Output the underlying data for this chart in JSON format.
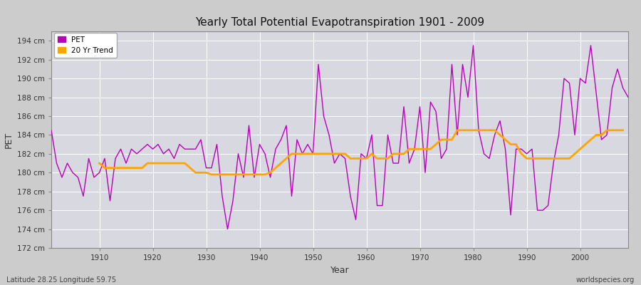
{
  "title": "Yearly Total Potential Evapotranspiration 1901 - 2009",
  "xlabel": "Year",
  "ylabel": "PET",
  "subtitle_left": "Latitude 28.25 Longitude 59.75",
  "subtitle_right": "worldspecies.org",
  "pet_color": "#BB00BB",
  "trend_color": "#FFA500",
  "fig_bg_color": "#CCCCCC",
  "plot_bg_color": "#D8D8E0",
  "ylim": [
    172,
    195
  ],
  "yticks": [
    172,
    174,
    176,
    178,
    180,
    182,
    184,
    186,
    188,
    190,
    192,
    194
  ],
  "xlim": [
    1901,
    2009
  ],
  "xticks": [
    1910,
    1920,
    1930,
    1940,
    1950,
    1960,
    1970,
    1980,
    1990,
    2000
  ],
  "years": [
    1901,
    1902,
    1903,
    1904,
    1905,
    1906,
    1907,
    1908,
    1909,
    1910,
    1911,
    1912,
    1913,
    1914,
    1915,
    1916,
    1917,
    1918,
    1919,
    1920,
    1921,
    1922,
    1923,
    1924,
    1925,
    1926,
    1927,
    1928,
    1929,
    1930,
    1931,
    1932,
    1933,
    1934,
    1935,
    1936,
    1937,
    1938,
    1939,
    1940,
    1941,
    1942,
    1943,
    1944,
    1945,
    1946,
    1947,
    1948,
    1949,
    1950,
    1951,
    1952,
    1953,
    1954,
    1955,
    1956,
    1957,
    1958,
    1959,
    1960,
    1961,
    1962,
    1963,
    1964,
    1965,
    1966,
    1967,
    1968,
    1969,
    1970,
    1971,
    1972,
    1973,
    1974,
    1975,
    1976,
    1977,
    1978,
    1979,
    1980,
    1981,
    1982,
    1983,
    1984,
    1985,
    1986,
    1987,
    1988,
    1989,
    1990,
    1991,
    1992,
    1993,
    1994,
    1995,
    1996,
    1997,
    1998,
    1999,
    2000,
    2001,
    2002,
    2003,
    2004,
    2005,
    2006,
    2007,
    2008,
    2009
  ],
  "pet_values": [
    184.5,
    181.0,
    179.5,
    181.0,
    180.0,
    179.5,
    177.5,
    181.5,
    179.5,
    180.0,
    181.5,
    177.0,
    181.5,
    182.5,
    181.0,
    182.5,
    182.0,
    182.5,
    183.0,
    182.5,
    183.0,
    182.0,
    182.5,
    181.5,
    183.0,
    182.5,
    182.5,
    182.5,
    183.5,
    180.5,
    180.5,
    183.0,
    177.5,
    174.0,
    177.0,
    182.0,
    179.5,
    185.0,
    179.5,
    183.0,
    182.0,
    179.5,
    182.5,
    183.5,
    185.0,
    177.5,
    183.5,
    182.0,
    183.0,
    182.0,
    191.5,
    186.0,
    184.0,
    181.0,
    182.0,
    181.5,
    177.5,
    175.0,
    182.0,
    181.5,
    184.0,
    176.5,
    176.5,
    184.0,
    181.0,
    181.0,
    187.0,
    181.0,
    182.5,
    187.0,
    180.0,
    187.5,
    186.5,
    181.5,
    182.5,
    191.5,
    184.0,
    191.5,
    188.0,
    193.5,
    184.5,
    182.0,
    181.5,
    184.0,
    185.5,
    182.5,
    175.5,
    182.5,
    182.5,
    182.0,
    182.5,
    176.0,
    176.0,
    176.5,
    181.0,
    184.0,
    190.0,
    189.5,
    184.0,
    190.0,
    189.5,
    193.5,
    188.5,
    183.5,
    184.0,
    189.0,
    191.0,
    189.0,
    188.0
  ],
  "trend_values": [
    null,
    null,
    null,
    null,
    null,
    null,
    null,
    null,
    null,
    181.0,
    180.5,
    180.5,
    180.5,
    180.5,
    180.5,
    180.5,
    180.5,
    180.5,
    181.0,
    181.0,
    181.0,
    181.0,
    181.0,
    181.0,
    181.0,
    181.0,
    180.5,
    180.0,
    180.0,
    180.0,
    179.8,
    179.8,
    179.8,
    179.8,
    179.8,
    179.8,
    179.8,
    179.8,
    179.8,
    179.8,
    179.8,
    180.0,
    180.5,
    181.0,
    181.5,
    182.0,
    182.0,
    182.0,
    182.0,
    182.0,
    182.0,
    182.0,
    182.0,
    182.0,
    182.0,
    182.0,
    181.5,
    181.5,
    181.5,
    181.5,
    182.0,
    181.5,
    181.5,
    181.5,
    182.0,
    182.0,
    182.0,
    182.5,
    182.5,
    182.5,
    182.5,
    182.5,
    183.0,
    183.5,
    183.5,
    183.5,
    184.5,
    184.5,
    184.5,
    184.5,
    184.5,
    184.5,
    184.5,
    184.5,
    184.0,
    183.5,
    183.0,
    183.0,
    182.0,
    181.5,
    181.5,
    181.5,
    181.5,
    181.5,
    181.5,
    181.5,
    181.5,
    181.5,
    182.0,
    182.5,
    183.0,
    183.5,
    184.0,
    184.0,
    184.5,
    184.5,
    184.5,
    184.5
  ]
}
